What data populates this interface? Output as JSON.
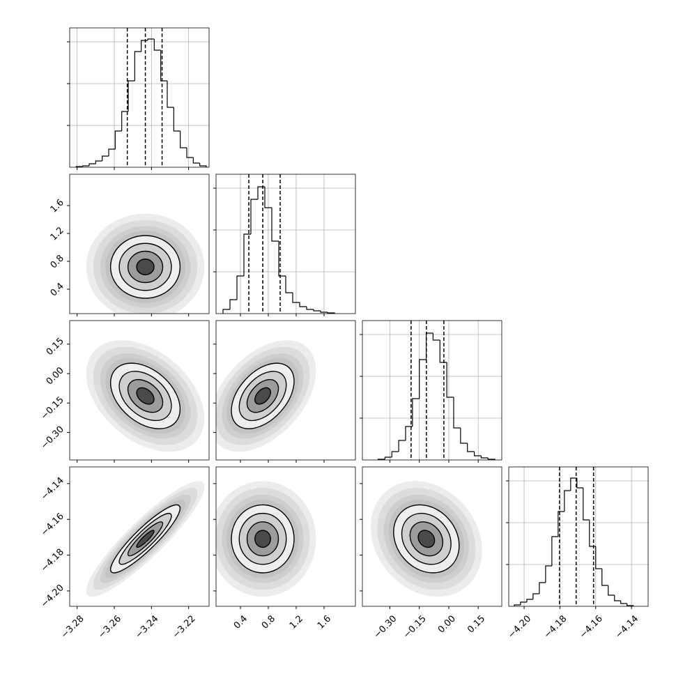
{
  "chart_data": {
    "type": "corner",
    "parameters": [
      {
        "lim": [
          -3.284,
          -3.209
        ],
        "ticks": [
          {
            "value": -3.28,
            "label": "−3.28"
          },
          {
            "value": -3.26,
            "label": "−3.26"
          },
          {
            "value": -3.24,
            "label": "−3.24"
          },
          {
            "value": -3.22,
            "label": "−3.22"
          }
        ],
        "quantiles": [
          -3.253,
          -3.2433,
          -3.2343
        ],
        "bins": [
          -3.2805,
          -3.277,
          -3.2735,
          -3.27,
          -3.2665,
          -3.263,
          -3.2595,
          -3.256,
          -3.2525,
          -3.249,
          -3.2455,
          -3.242,
          -3.2385,
          -3.235,
          -3.2315,
          -3.228,
          -3.2245,
          -3.221,
          -3.2175,
          -3.214,
          -3.2105
        ],
        "counts": [
          0.005,
          0.01,
          0.025,
          0.045,
          0.08,
          0.13,
          0.26,
          0.4,
          0.62,
          0.83,
          0.91,
          0.92,
          0.84,
          0.62,
          0.43,
          0.26,
          0.14,
          0.07,
          0.03,
          0.01
        ]
      },
      {
        "lim": [
          0.05,
          2.05
        ],
        "ticks": [
          0.4,
          0.8,
          1.2,
          1.6
        ],
        "quantiles": [
          0.52,
          0.72,
          0.97
        ],
        "bins": [
          0.15,
          0.25,
          0.35,
          0.45,
          0.55,
          0.65,
          0.75,
          0.85,
          0.95,
          1.05,
          1.15,
          1.25,
          1.35,
          1.45,
          1.55,
          1.65,
          1.75
        ],
        "counts": [
          0.03,
          0.1,
          0.27,
          0.57,
          0.82,
          0.91,
          0.76,
          0.52,
          0.27,
          0.15,
          0.08,
          0.05,
          0.03,
          0.02,
          0.01,
          0.005
        ]
      },
      {
        "lim": [
          -0.44,
          0.27
        ],
        "ticks": [
          {
            "value": -0.3,
            "label": "−0.30"
          },
          {
            "value": -0.15,
            "label": "−0.15"
          },
          {
            "value": 0,
            "label": "0.00"
          },
          0.15
        ],
        "quantiles": [
          -0.192,
          -0.114,
          -0.025
        ],
        "bins": [
          -0.36,
          -0.325,
          -0.29,
          -0.255,
          -0.22,
          -0.185,
          -0.15,
          -0.115,
          -0.08,
          -0.045,
          -0.01,
          0.025,
          0.06,
          0.095,
          0.13,
          0.165,
          0.2,
          0.235
        ],
        "counts": [
          0.005,
          0.02,
          0.06,
          0.14,
          0.24,
          0.44,
          0.72,
          0.91,
          0.86,
          0.7,
          0.45,
          0.23,
          0.12,
          0.06,
          0.03,
          0.015,
          0.005
        ]
      },
      {
        "lim": [
          -4.2086,
          -4.1307
        ],
        "ticks": [
          {
            "value": -4.2,
            "label": "−4.20"
          },
          {
            "value": -4.18,
            "label": "−4.18"
          },
          {
            "value": -4.16,
            "label": "−4.16"
          },
          {
            "value": -4.14,
            "label": "−4.14"
          }
        ],
        "quantiles": [
          -4.1802,
          -4.1709,
          -4.1612
        ],
        "bins": [
          -4.2055,
          -4.202,
          -4.1985,
          -4.195,
          -4.1915,
          -4.188,
          -4.1845,
          -4.181,
          -4.1775,
          -4.174,
          -4.1705,
          -4.167,
          -4.1635,
          -4.16,
          -4.1565,
          -4.153,
          -4.1495,
          -4.146,
          -4.1425,
          -4.139
        ],
        "counts": [
          0.01,
          0.03,
          0.05,
          0.09,
          0.17,
          0.29,
          0.5,
          0.68,
          0.83,
          0.92,
          0.85,
          0.62,
          0.43,
          0.27,
          0.15,
          0.08,
          0.04,
          0.02,
          0.005
        ]
      }
    ],
    "correlations": [
      [
        0.0
      ],
      [
        -0.4,
        0.45
      ],
      [
        0.9,
        0.0,
        -0.2
      ]
    ],
    "hist_ylim": [
      0,
      1
    ],
    "hist_yticks": [
      0.3,
      0.6,
      0.9
    ],
    "hist_grid": true,
    "contour_color": "#000000"
  }
}
